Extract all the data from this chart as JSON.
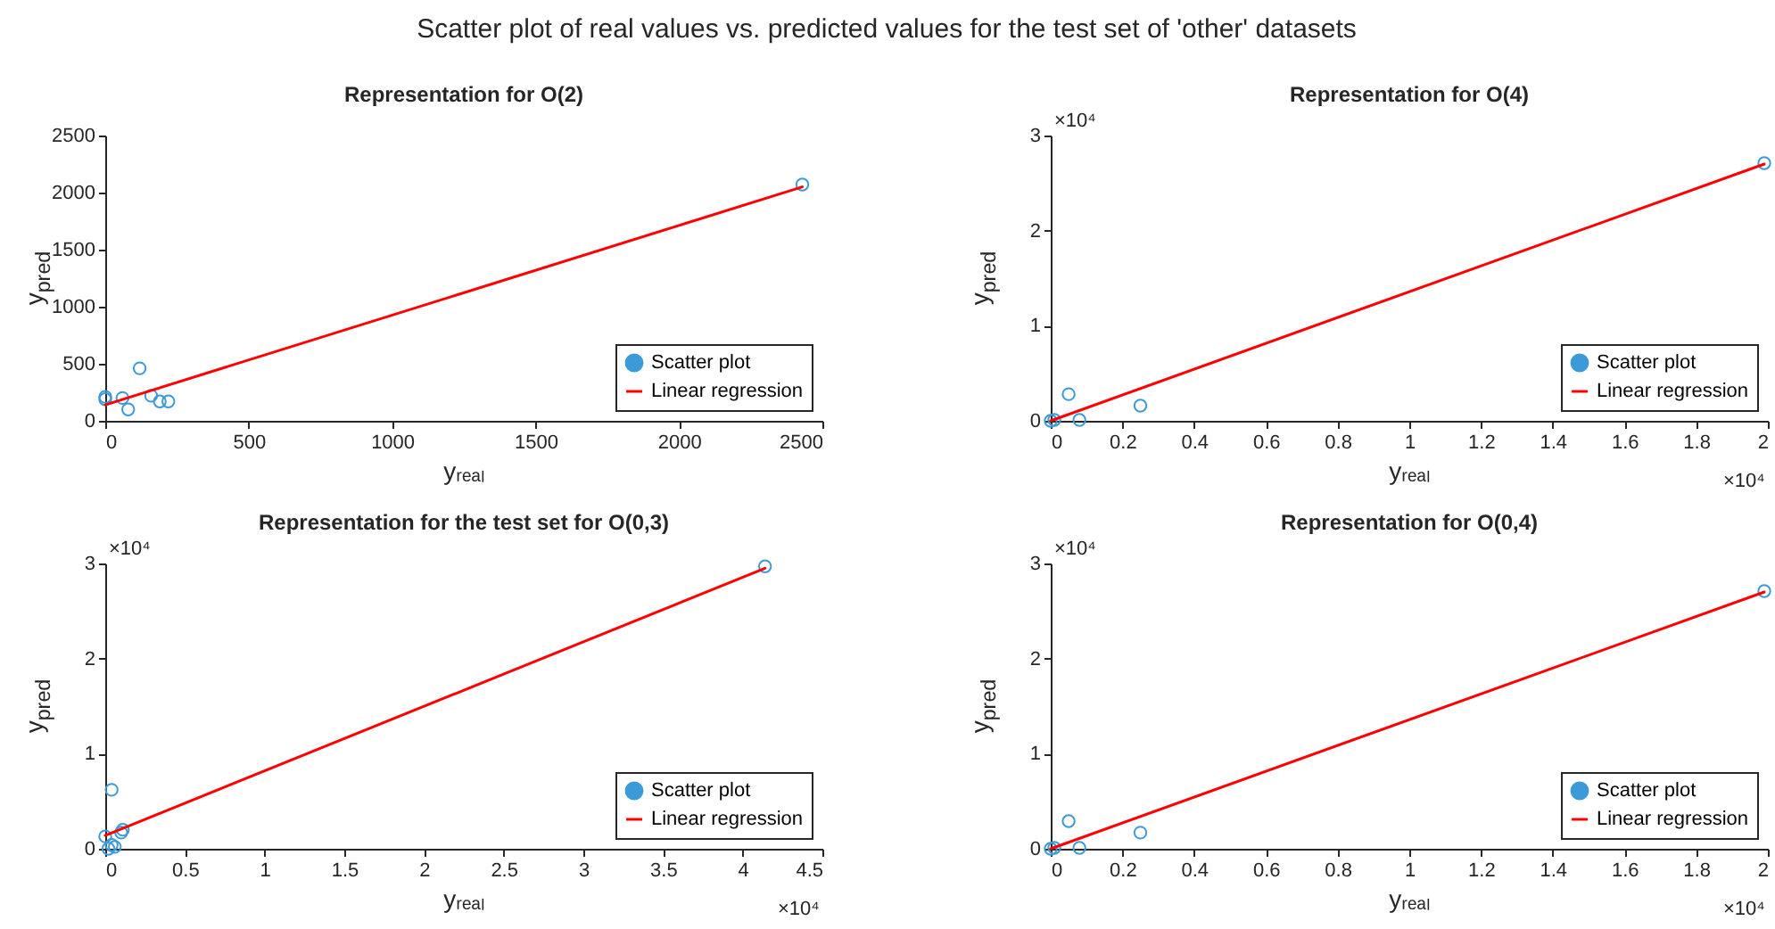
{
  "chart_data": [
    {
      "type": "other",
      "title": "Scatter plot of real values vs. predicted values for the test set of 'other' datasets"
    },
    {
      "type": "scatter",
      "title": "Representation for O(2)",
      "xlabel": "yᵣₑₐₗ",
      "ylabel": "y$_{pred}$",
      "xlim": [
        0,
        2500
      ],
      "ylim": [
        0,
        2500
      ],
      "xticks": [
        0,
        500,
        1000,
        1500,
        2000,
        2500
      ],
      "yticks": [
        0,
        500,
        1000,
        1500,
        2000,
        2500
      ],
      "legend": "bottom right",
      "series": [
        {
          "name": "Scatter plot",
          "color": "#3d9ad9",
          "marker": "circle",
          "x": [
            0,
            0,
            60,
            80,
            120,
            160,
            190,
            220,
            2430
          ],
          "values": [
            190,
            210,
            200,
            100,
            460,
            220,
            170,
            170,
            2070
          ]
        },
        {
          "name": "Linear regression",
          "type": "line",
          "marker": "none",
          "color": "#ff0000",
          "x": [
            0,
            2430
          ],
          "values": [
            140,
            2050
          ]
        }
      ]
    },
    {
      "type": "scatter",
      "title": "Representation for O(4)",
      "xlabel": "yᵣₑₐₗ",
      "ylabel": "y$_{pred}$",
      "xlim": [
        0,
        2
      ],
      "ylim": [
        0,
        3
      ],
      "xticks": [
        0,
        0.2,
        0.4,
        0.6,
        0.8,
        1,
        1.2,
        1.4,
        1.6,
        1.8,
        2
      ],
      "yticks": [
        0,
        1,
        2,
        3
      ],
      "legend": "bottom right",
      "annotations": [
        "×10⁴",
        "×10⁴"
      ],
      "series": [
        {
          "name": "Scatter plot",
          "color": "#3d9ad9",
          "marker": "circle",
          "x": [
            0,
            0.01,
            0.05,
            0.08,
            0.25,
            1.99
          ],
          "values": [
            0,
            0.01,
            0.28,
            0.01,
            0.16,
            2.71
          ]
        },
        {
          "name": "Linear regression",
          "type": "line",
          "marker": "none",
          "color": "#ff0000",
          "x": [
            0,
            1.99
          ],
          "values": [
            0,
            2.7
          ]
        }
      ]
    },
    {
      "type": "scatter",
      "title": "Representation for the test set for O(0,3)",
      "xlabel": "yᵣₑₐₗ",
      "ylabel": "y$_{pred}$",
      "xlim": [
        0,
        4.5
      ],
      "ylim": [
        0,
        3
      ],
      "xticks": [
        0,
        0.5,
        1,
        1.5,
        2,
        2.5,
        3,
        3.5,
        4,
        4.5
      ],
      "yticks": [
        0,
        1,
        2,
        3
      ],
      "legend": "bottom right",
      "annotations": [
        "×10⁴",
        "×10⁴"
      ],
      "series": [
        {
          "name": "Scatter plot",
          "color": "#3d9ad9",
          "marker": "circle",
          "x": [
            0,
            0.02,
            0.04,
            0.04,
            0.06,
            0.1,
            0.11,
            4.14
          ],
          "values": [
            0.13,
            0,
            0.04,
            0.62,
            0.02,
            0.17,
            0.2,
            2.97
          ]
        },
        {
          "name": "Linear regression",
          "type": "line",
          "marker": "none",
          "color": "#ff0000",
          "x": [
            0,
            4.14
          ],
          "values": [
            0.14,
            2.95
          ]
        }
      ]
    },
    {
      "type": "scatter",
      "title": "Representation for O(0,4)",
      "xlabel": "yᵣₑₐₗ",
      "ylabel": "y$_{pred}$",
      "xlim": [
        0,
        2
      ],
      "ylim": [
        0,
        3
      ],
      "xticks": [
        0,
        0.2,
        0.4,
        0.6,
        0.8,
        1,
        1.2,
        1.4,
        1.6,
        1.8,
        2
      ],
      "yticks": [
        0,
        1,
        2,
        3
      ],
      "legend": "bottom right",
      "annotations": [
        "×10⁴",
        "×10⁴"
      ],
      "series": [
        {
          "name": "Scatter plot",
          "color": "#3d9ad9",
          "marker": "circle",
          "x": [
            0,
            0.01,
            0.05,
            0.08,
            0.25,
            1.99
          ],
          "values": [
            0,
            0.01,
            0.29,
            0.01,
            0.17,
            2.71
          ]
        },
        {
          "name": "Linear regression",
          "type": "line",
          "marker": "none",
          "color": "#ff0000",
          "x": [
            0,
            1.99
          ],
          "values": [
            0,
            2.7
          ]
        }
      ]
    }
  ]
}
